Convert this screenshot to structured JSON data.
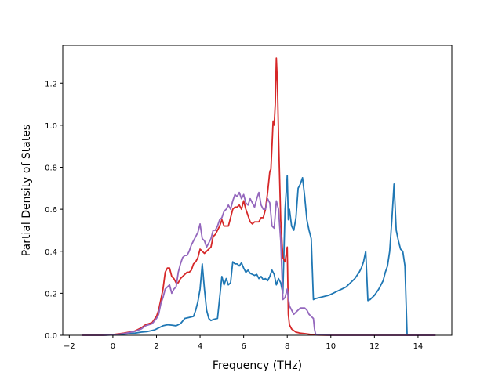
{
  "chart_data": {
    "type": "line",
    "title": "",
    "xlabel": "Frequency (THz)",
    "ylabel": "Partial Density of States",
    "xlim": [
      -2.3,
      15.55
    ],
    "ylim": [
      0,
      1.38
    ],
    "xticks": [
      -2,
      0,
      2,
      4,
      6,
      8,
      10,
      12,
      14
    ],
    "yticks": [
      0.0,
      0.2,
      0.4,
      0.6,
      0.8,
      1.0,
      1.2
    ],
    "xtick_labels": [
      "−2",
      "0",
      "2",
      "4",
      "6",
      "8",
      "10",
      "12",
      "14"
    ],
    "ytick_labels": [
      "0.0",
      "0.2",
      "0.4",
      "0.6",
      "0.8",
      "1.0",
      "1.2"
    ],
    "grid": false,
    "legend": "none",
    "series": [
      {
        "color": "#1f77b4",
        "x": [
          -1.4,
          -0.5,
          0.0,
          0.5,
          1.0,
          1.3,
          1.6,
          1.9,
          2.1,
          2.3,
          2.5,
          2.7,
          2.9,
          3.1,
          3.3,
          3.5,
          3.7,
          3.8,
          3.9,
          4.0,
          4.05,
          4.1,
          4.2,
          4.3,
          4.4,
          4.5,
          4.6,
          4.8,
          4.9,
          5.0,
          5.1,
          5.2,
          5.3,
          5.4,
          5.5,
          5.6,
          5.7,
          5.8,
          5.9,
          6.0,
          6.1,
          6.2,
          6.3,
          6.4,
          6.5,
          6.6,
          6.7,
          6.8,
          6.9,
          7.0,
          7.1,
          7.2,
          7.3,
          7.4,
          7.5,
          7.6,
          7.7,
          7.8,
          7.9,
          8.0,
          8.05,
          8.1,
          8.2,
          8.3,
          8.4,
          8.5,
          8.6,
          8.7,
          8.8,
          8.9,
          9.0,
          9.1,
          9.2,
          9.3,
          9.5,
          9.7,
          9.9,
          10.1,
          10.3,
          10.5,
          10.7,
          10.9,
          11.1,
          11.3,
          11.4,
          11.5,
          11.6,
          11.7,
          11.8,
          12.0,
          12.2,
          12.4,
          12.5,
          12.6,
          12.7,
          12.8,
          12.9,
          13.0,
          13.1,
          13.2,
          13.3,
          13.4,
          13.5,
          13.6,
          14.0,
          14.8
        ],
        "y": [
          0.0,
          0.0,
          0.002,
          0.005,
          0.01,
          0.015,
          0.018,
          0.025,
          0.035,
          0.045,
          0.05,
          0.048,
          0.045,
          0.055,
          0.08,
          0.085,
          0.09,
          0.12,
          0.16,
          0.22,
          0.28,
          0.34,
          0.22,
          0.12,
          0.08,
          0.07,
          0.075,
          0.08,
          0.18,
          0.28,
          0.24,
          0.27,
          0.24,
          0.25,
          0.35,
          0.34,
          0.34,
          0.33,
          0.345,
          0.32,
          0.3,
          0.31,
          0.295,
          0.29,
          0.285,
          0.29,
          0.27,
          0.28,
          0.265,
          0.27,
          0.26,
          0.28,
          0.31,
          0.29,
          0.24,
          0.27,
          0.25,
          0.2,
          0.6,
          0.76,
          0.55,
          0.6,
          0.52,
          0.5,
          0.56,
          0.7,
          0.72,
          0.75,
          0.66,
          0.55,
          0.5,
          0.46,
          0.17,
          0.175,
          0.18,
          0.185,
          0.19,
          0.2,
          0.21,
          0.22,
          0.23,
          0.25,
          0.27,
          0.3,
          0.32,
          0.35,
          0.4,
          0.165,
          0.17,
          0.19,
          0.22,
          0.26,
          0.3,
          0.33,
          0.4,
          0.55,
          0.72,
          0.5,
          0.45,
          0.41,
          0.4,
          0.33,
          0.0,
          0.0,
          0.0,
          0.0
        ]
      },
      {
        "color": "#d62728",
        "x": [
          -1.4,
          -0.5,
          0.0,
          0.5,
          1.0,
          1.3,
          1.5,
          1.8,
          2.0,
          2.1,
          2.2,
          2.3,
          2.4,
          2.5,
          2.6,
          2.7,
          2.8,
          2.9,
          3.0,
          3.1,
          3.2,
          3.3,
          3.4,
          3.5,
          3.6,
          3.7,
          3.8,
          3.9,
          4.0,
          4.1,
          4.2,
          4.3,
          4.4,
          4.5,
          4.6,
          4.7,
          4.8,
          4.9,
          5.0,
          5.1,
          5.2,
          5.3,
          5.4,
          5.5,
          5.6,
          5.7,
          5.8,
          5.9,
          6.0,
          6.1,
          6.2,
          6.3,
          6.4,
          6.5,
          6.6,
          6.7,
          6.8,
          6.9,
          7.0,
          7.1,
          7.2,
          7.25,
          7.3,
          7.35,
          7.4,
          7.45,
          7.5,
          7.55,
          7.6,
          7.7,
          7.8,
          7.9,
          8.0,
          8.05,
          8.1,
          8.2,
          8.4,
          8.6,
          8.8,
          9.0,
          9.2,
          9.4,
          10.0,
          12.0,
          14.8
        ],
        "y": [
          0.0,
          0.0,
          0.003,
          0.01,
          0.02,
          0.035,
          0.05,
          0.06,
          0.09,
          0.12,
          0.17,
          0.22,
          0.3,
          0.32,
          0.32,
          0.28,
          0.27,
          0.25,
          0.25,
          0.27,
          0.28,
          0.29,
          0.3,
          0.3,
          0.31,
          0.34,
          0.35,
          0.37,
          0.41,
          0.4,
          0.39,
          0.4,
          0.41,
          0.42,
          0.47,
          0.48,
          0.5,
          0.52,
          0.55,
          0.52,
          0.52,
          0.52,
          0.56,
          0.6,
          0.61,
          0.61,
          0.62,
          0.6,
          0.64,
          0.6,
          0.57,
          0.54,
          0.53,
          0.54,
          0.54,
          0.54,
          0.56,
          0.56,
          0.6,
          0.68,
          0.78,
          0.79,
          0.9,
          1.02,
          1.0,
          1.1,
          1.32,
          1.2,
          0.95,
          0.55,
          0.37,
          0.35,
          0.42,
          0.1,
          0.05,
          0.03,
          0.015,
          0.01,
          0.008,
          0.005,
          0.002,
          0.001,
          0.0,
          0.0,
          0.0
        ]
      },
      {
        "color": "#9467bd",
        "x": [
          -1.4,
          -0.5,
          0.0,
          0.5,
          1.0,
          1.3,
          1.5,
          1.8,
          2.0,
          2.1,
          2.2,
          2.3,
          2.4,
          2.5,
          2.6,
          2.7,
          2.8,
          2.9,
          3.0,
          3.1,
          3.2,
          3.3,
          3.4,
          3.5,
          3.6,
          3.7,
          3.8,
          3.9,
          4.0,
          4.1,
          4.2,
          4.3,
          4.4,
          4.5,
          4.6,
          4.7,
          4.8,
          4.9,
          5.0,
          5.1,
          5.2,
          5.3,
          5.4,
          5.5,
          5.6,
          5.7,
          5.8,
          5.9,
          6.0,
          6.1,
          6.2,
          6.3,
          6.4,
          6.5,
          6.6,
          6.7,
          6.8,
          6.9,
          7.0,
          7.1,
          7.2,
          7.3,
          7.4,
          7.5,
          7.6,
          7.7,
          7.8,
          7.9,
          8.0,
          8.1,
          8.2,
          8.3,
          8.4,
          8.5,
          8.6,
          8.7,
          8.8,
          8.9,
          9.0,
          9.1,
          9.2,
          9.25,
          9.3,
          9.5,
          10.0,
          12.0,
          14.8
        ],
        "y": [
          0.0,
          0.0,
          0.002,
          0.008,
          0.018,
          0.03,
          0.045,
          0.055,
          0.08,
          0.1,
          0.15,
          0.18,
          0.22,
          0.23,
          0.24,
          0.2,
          0.22,
          0.23,
          0.3,
          0.34,
          0.37,
          0.38,
          0.38,
          0.4,
          0.43,
          0.45,
          0.47,
          0.49,
          0.53,
          0.46,
          0.45,
          0.42,
          0.44,
          0.46,
          0.5,
          0.5,
          0.52,
          0.55,
          0.56,
          0.59,
          0.6,
          0.62,
          0.6,
          0.64,
          0.67,
          0.66,
          0.68,
          0.65,
          0.67,
          0.63,
          0.62,
          0.65,
          0.63,
          0.61,
          0.65,
          0.68,
          0.62,
          0.6,
          0.6,
          0.65,
          0.63,
          0.52,
          0.51,
          0.64,
          0.6,
          0.45,
          0.17,
          0.18,
          0.22,
          0.14,
          0.12,
          0.1,
          0.11,
          0.12,
          0.13,
          0.13,
          0.13,
          0.12,
          0.1,
          0.09,
          0.08,
          0.03,
          0.005,
          0.002,
          0.0,
          0.0,
          0.0
        ]
      }
    ]
  }
}
